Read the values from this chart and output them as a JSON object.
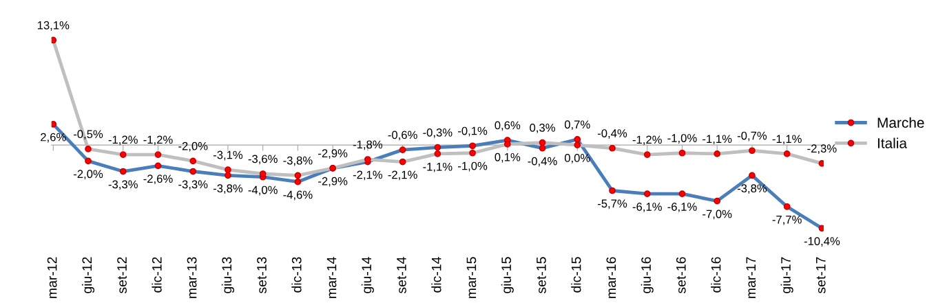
{
  "chart_data": {
    "type": "line",
    "categories": [
      "mar-12",
      "giu-12",
      "set-12",
      "dic-12",
      "mar-13",
      "giu-13",
      "set-13",
      "dic-13",
      "mar-14",
      "giu-14",
      "set-14",
      "dic-14",
      "mar-15",
      "giu-15",
      "set-15",
      "dic-15",
      "mar-16",
      "giu-16",
      "set-16",
      "dic-16",
      "mar-17",
      "giu-17",
      "set-17"
    ],
    "series": [
      {
        "name": "Marche",
        "color": "#4a7ebb",
        "values": [
          2.6,
          -2.0,
          -3.3,
          -2.6,
          -3.3,
          -3.8,
          -4.0,
          -4.6,
          -2.9,
          -2.1,
          -0.6,
          -0.3,
          -0.1,
          0.6,
          -0.4,
          0.7,
          -5.7,
          -6.1,
          -6.1,
          -7.0,
          -3.8,
          -7.7,
          -10.4
        ],
        "value_labels": [
          "2,6%",
          "-2,0%",
          "-3,3%",
          "-2,6%",
          "-3,3%",
          "-3,8%",
          "-4,0%",
          "-4,6%",
          "-2,9%",
          "-2,1%",
          "-0,6%",
          "-0,3%",
          "-0,1%",
          "0,6%",
          "-0,4%",
          "0,7%",
          "-5,7%",
          "-6,1%",
          "-6,1%",
          "-7,0%",
          "-3,8%",
          "-7,7%",
          "-10,4%"
        ]
      },
      {
        "name": "Italia",
        "color": "#bfbfbf",
        "values": [
          13.1,
          -0.5,
          -1.2,
          -1.2,
          -2.0,
          -3.1,
          -3.6,
          -3.8,
          -2.9,
          -1.8,
          -2.1,
          -1.1,
          -1.0,
          0.1,
          0.3,
          0.0,
          -0.4,
          -1.2,
          -1.0,
          -1.1,
          -0.7,
          -1.1,
          -2.3
        ],
        "value_labels": [
          "13,1%",
          "-0,5%",
          "-1,2%",
          "-1,2%",
          "-2,0%",
          "-3,1%",
          "-3,6%",
          "-3,8%",
          "-2,9%",
          "-1,8%",
          "-2,1%",
          "-1,1%",
          "-1,0%",
          "0,1%",
          "0,3%",
          "0,0%",
          "-0,4%",
          "-1,2%",
          "-1,0%",
          "-1,1%",
          "-0,7%",
          "-1,1%",
          "-2,3%"
        ]
      }
    ],
    "tick_labels": "x",
    "marker": "circle",
    "line_style": "solid",
    "grid": false,
    "legend": "right"
  }
}
